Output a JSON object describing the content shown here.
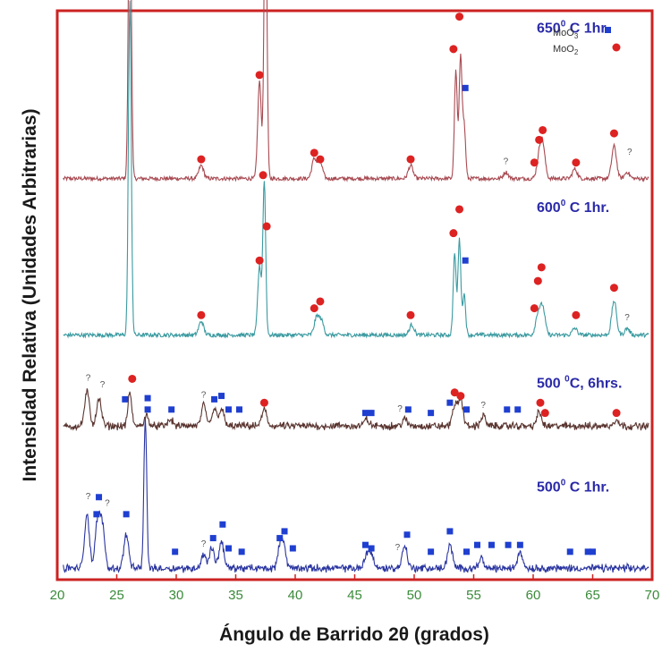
{
  "chart_data": {
    "type": "line",
    "xlabel": "Ángulo de Barrido 2θ (grados)",
    "ylabel": "Intensidad Relativa (Unidades Arbitrarias)",
    "xlim": [
      20,
      70
    ],
    "xticks": [
      "20",
      "25",
      "30",
      "35",
      "40",
      "45",
      "50",
      "55",
      "60",
      "65",
      "70"
    ],
    "grid": false,
    "frame_color": "#cc2222",
    "legend": {
      "placement": "top-right",
      "entries": [
        {
          "label": "MoO3",
          "marker": "square",
          "color": "#1f3fd0"
        },
        {
          "label": "MoO2",
          "marker": "circle",
          "color": "#dd2222"
        }
      ]
    },
    "series": [
      {
        "name": "650⁰ C 1hr.",
        "label_parts": [
          "650",
          "0",
          " C 1hr."
        ],
        "color": "#a84a52",
        "baseline_frac": 0.705,
        "scale": 0.57,
        "peaks": [
          [
            26.1,
            1.0,
            0.12
          ],
          [
            32.1,
            0.04,
            0.2
          ],
          [
            37.0,
            0.3,
            0.15
          ],
          [
            37.5,
            0.98,
            0.12
          ],
          [
            41.6,
            0.06,
            0.2
          ],
          [
            42.1,
            0.05,
            0.2
          ],
          [
            49.7,
            0.04,
            0.2
          ],
          [
            53.5,
            0.33,
            0.12
          ],
          [
            53.9,
            0.38,
            0.12
          ],
          [
            54.2,
            0.16,
            0.12
          ],
          [
            57.7,
            0.02,
            0.2
          ],
          [
            60.5,
            0.06,
            0.2
          ],
          [
            60.8,
            0.1,
            0.2
          ],
          [
            63.5,
            0.03,
            0.2
          ],
          [
            66.8,
            0.1,
            0.2
          ],
          [
            67.9,
            0.02,
            0.2
          ]
        ],
        "moo2_markers": [
          [
            26.1,
            1.0
          ],
          [
            32.1,
            0.04
          ],
          [
            37.0,
            0.3
          ],
          [
            37.3,
            0.6
          ],
          [
            37.5,
            0.98
          ],
          [
            41.6,
            0.06
          ],
          [
            42.1,
            0.04
          ],
          [
            49.7,
            0.04
          ],
          [
            53.3,
            0.38
          ],
          [
            53.8,
            0.48
          ],
          [
            60.1,
            0.03
          ],
          [
            60.5,
            0.1
          ],
          [
            60.8,
            0.13
          ],
          [
            63.6,
            0.03
          ],
          [
            66.8,
            0.12
          ]
        ],
        "moo3_markers": [
          [
            54.3,
            0.26
          ]
        ],
        "question_marks": [
          [
            57.7,
            0.03
          ],
          [
            68.1,
            0.06
          ]
        ]
      },
      {
        "name": "600⁰ C 1hr.",
        "label_parts": [
          "600",
          "0",
          " C 1hr."
        ],
        "color": "#3a9aa0",
        "baseline_frac": 0.43,
        "scale": 0.6,
        "peaks": [
          [
            26.1,
            0.98,
            0.12
          ],
          [
            32.1,
            0.04,
            0.2
          ],
          [
            37.0,
            0.2,
            0.15
          ],
          [
            37.4,
            0.45,
            0.12
          ],
          [
            41.8,
            0.05,
            0.2
          ],
          [
            42.2,
            0.04,
            0.2
          ],
          [
            49.8,
            0.03,
            0.2
          ],
          [
            53.4,
            0.24,
            0.12
          ],
          [
            53.8,
            0.28,
            0.12
          ],
          [
            54.2,
            0.12,
            0.12
          ],
          [
            60.4,
            0.06,
            0.2
          ],
          [
            60.8,
            0.08,
            0.2
          ],
          [
            63.5,
            0.02,
            0.2
          ],
          [
            66.8,
            0.1,
            0.2
          ],
          [
            67.9,
            0.02,
            0.2
          ]
        ],
        "moo2_markers": [
          [
            26.1,
            1.0
          ],
          [
            32.1,
            0.04
          ],
          [
            37.0,
            0.2
          ],
          [
            37.3,
            0.45
          ],
          [
            37.6,
            0.3
          ],
          [
            41.6,
            0.06
          ],
          [
            42.1,
            0.08
          ],
          [
            49.7,
            0.04
          ],
          [
            53.3,
            0.28
          ],
          [
            53.8,
            0.35
          ],
          [
            60.1,
            0.06
          ],
          [
            60.4,
            0.14
          ],
          [
            60.7,
            0.18
          ],
          [
            63.6,
            0.04
          ],
          [
            66.8,
            0.12
          ]
        ],
        "moo3_markers": [
          [
            54.3,
            0.2
          ]
        ],
        "question_marks": [
          [
            67.9,
            0.03
          ]
        ]
      },
      {
        "name": "500 ⁰C, 6hrs.",
        "label_parts": [
          "500 ",
          "0",
          "C, 6hrs."
        ],
        "color": "#5a3530",
        "baseline_frac": 0.27,
        "scale": 0.6,
        "peaks": [
          [
            22.5,
            0.1,
            0.2
          ],
          [
            23.5,
            0.08,
            0.2
          ],
          [
            26.1,
            0.1,
            0.15
          ],
          [
            27.5,
            0.03,
            0.2
          ],
          [
            29.5,
            0.02,
            0.2
          ],
          [
            32.3,
            0.06,
            0.2
          ],
          [
            33.2,
            0.05,
            0.2
          ],
          [
            33.8,
            0.05,
            0.2
          ],
          [
            37.4,
            0.05,
            0.2
          ],
          [
            46.0,
            0.02,
            0.2
          ],
          [
            49.2,
            0.02,
            0.2
          ],
          [
            53.4,
            0.06,
            0.2
          ],
          [
            53.9,
            0.08,
            0.2
          ],
          [
            55.8,
            0.03,
            0.2
          ],
          [
            60.5,
            0.04,
            0.2
          ],
          [
            67.0,
            0.02,
            0.2
          ]
        ],
        "moo2_markers": [
          [
            26.3,
            0.12
          ],
          [
            37.4,
            0.05
          ],
          [
            53.4,
            0.08
          ],
          [
            53.9,
            0.07
          ],
          [
            60.6,
            0.05
          ],
          [
            61.0,
            0.02
          ],
          [
            67.0,
            0.02
          ]
        ],
        "moo3_markers": [
          [
            25.7,
            0.06
          ],
          [
            27.6,
            0.03
          ],
          [
            29.6,
            0.03
          ],
          [
            33.2,
            0.06
          ],
          [
            33.8,
            0.07
          ],
          [
            34.4,
            0.03
          ],
          [
            35.3,
            0.03
          ],
          [
            45.9,
            0.02
          ],
          [
            46.4,
            0.02
          ],
          [
            49.5,
            0.03
          ],
          [
            51.4,
            0.02
          ],
          [
            53.0,
            0.05
          ],
          [
            54.4,
            0.03
          ],
          [
            57.8,
            0.03
          ],
          [
            58.7,
            0.03
          ]
        ],
        "question_marks": [
          [
            22.6,
            0.12
          ],
          [
            23.8,
            0.1
          ],
          [
            32.3,
            0.07
          ],
          [
            48.8,
            0.03
          ],
          [
            55.8,
            0.04
          ]
        ]
      },
      {
        "name": "500⁰ C 1hr.",
        "label_parts": [
          "500",
          "0",
          " C 1hr."
        ],
        "color": "#2a35a0",
        "baseline_frac": 0.02,
        "scale": 0.6,
        "peaks": [
          [
            22.5,
            0.16,
            0.2
          ],
          [
            23.4,
            0.14,
            0.2
          ],
          [
            23.8,
            0.12,
            0.2
          ],
          [
            25.8,
            0.1,
            0.2
          ],
          [
            27.4,
            0.44,
            0.12
          ],
          [
            32.3,
            0.04,
            0.2
          ],
          [
            33.0,
            0.06,
            0.2
          ],
          [
            33.8,
            0.08,
            0.2
          ],
          [
            38.7,
            0.05,
            0.2
          ],
          [
            39.0,
            0.07,
            0.2
          ],
          [
            46.0,
            0.04,
            0.2
          ],
          [
            46.4,
            0.04,
            0.2
          ],
          [
            49.2,
            0.07,
            0.2
          ],
          [
            53.0,
            0.07,
            0.2
          ],
          [
            55.6,
            0.03,
            0.2
          ],
          [
            58.9,
            0.05,
            0.2
          ]
        ],
        "moo3_markers": [
          [
            23.5,
            0.19
          ],
          [
            23.3,
            0.14
          ],
          [
            25.8,
            0.14
          ],
          [
            27.6,
            0.48
          ],
          [
            29.9,
            0.03
          ],
          [
            33.1,
            0.07
          ],
          [
            33.9,
            0.11
          ],
          [
            34.4,
            0.04
          ],
          [
            35.5,
            0.03
          ],
          [
            38.7,
            0.07
          ],
          [
            39.1,
            0.09
          ],
          [
            39.8,
            0.04
          ],
          [
            45.9,
            0.05
          ],
          [
            46.4,
            0.04
          ],
          [
            49.4,
            0.08
          ],
          [
            51.4,
            0.03
          ],
          [
            53.0,
            0.09
          ],
          [
            54.4,
            0.03
          ],
          [
            55.3,
            0.05
          ],
          [
            56.5,
            0.05
          ],
          [
            57.9,
            0.05
          ],
          [
            58.9,
            0.05
          ],
          [
            63.1,
            0.03
          ],
          [
            64.6,
            0.03
          ],
          [
            65.0,
            0.03
          ]
        ],
        "moo2_markers": [],
        "question_marks": [
          [
            22.6,
            0.19
          ],
          [
            24.2,
            0.17
          ],
          [
            32.3,
            0.05
          ],
          [
            48.6,
            0.04
          ]
        ]
      }
    ]
  },
  "legend_labels": {
    "moo3_base": "MoO",
    "moo3_sub": "3",
    "moo2_base": "MoO",
    "moo2_sub": "2"
  },
  "question_mark_text": "?"
}
